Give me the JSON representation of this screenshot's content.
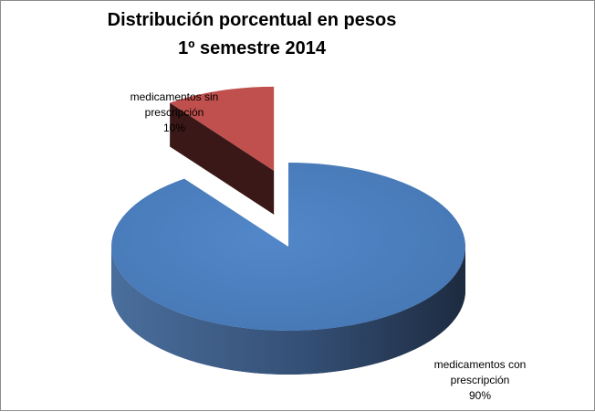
{
  "chart_data": {
    "type": "pie",
    "title": "Distribución porcentual en pesos",
    "subtitle": "1º semestre 2014",
    "slices": [
      {
        "label_line1": "medicamentos con",
        "label_line2": "prescripción",
        "value": 90,
        "value_label": "90%",
        "color": "#4F81BD",
        "exploded": false
      },
      {
        "label_line1": "medicamentos sin",
        "label_line2": "prescripción",
        "value": 10,
        "value_label": "10%",
        "color": "#C0504D",
        "exploded": true
      }
    ],
    "style": "3d-exploded",
    "legend": "none"
  }
}
